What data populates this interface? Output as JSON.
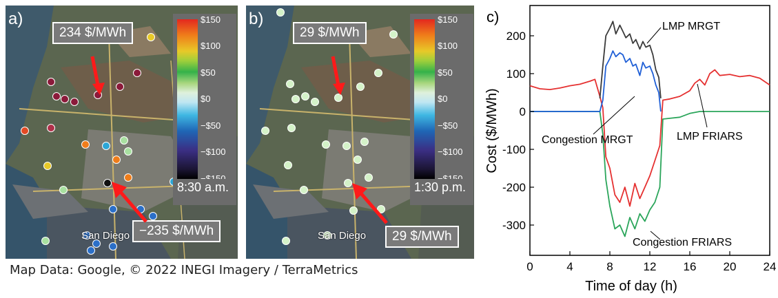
{
  "map_a": {
    "panel_letter": "a)",
    "callout_top": "234 $/MWh",
    "callout_bottom": "−235 $/MWh",
    "time": "8:30 a.m.",
    "city": "San Diego",
    "colorbar_ticks": [
      "$150",
      "$100",
      "$50",
      "$0",
      "−$50",
      "−$100",
      "−$150"
    ]
  },
  "map_b": {
    "panel_letter": "b)",
    "callout_top": "29 $/MWh",
    "callout_bottom": "29 $/MWh",
    "time": "1:30 p.m.",
    "city": "San Diego",
    "colorbar_ticks": [
      "$150",
      "$100",
      "$50",
      "$0",
      "−$50",
      "−$100",
      "−$150"
    ]
  },
  "credit": "Map Data: Google, © 2022 INEGI Imagery / TerraMetrics",
  "colors": {
    "lmp_mrgt": "#3a3a3a",
    "congestion_mrgt": "#1f5fd6",
    "lmp_friars": "#e53030",
    "congestion_friars": "#2aa55a",
    "callout_arrow": "#ff1a1a"
  },
  "chart_data": {
    "type": "line",
    "panel_letter": "c)",
    "xlabel": "Time of day (h)",
    "ylabel": "Cost ($/MWh)",
    "xlim": [
      0,
      24
    ],
    "ylim": [
      -380,
      280
    ],
    "xticks": [
      0,
      4,
      8,
      12,
      16,
      20,
      24
    ],
    "yticks": [
      200,
      100,
      0,
      -100,
      -200,
      -300
    ],
    "annotations": [
      "LMP MRGT",
      "Congestion MRGT",
      "LMP FRIARS",
      "Congestion FRIARS"
    ],
    "series": [
      {
        "name": "LMP MRGT",
        "x": [
          7.0,
          7.3,
          7.6,
          8.0,
          8.3,
          8.6,
          9.0,
          9.3,
          9.6,
          10.0,
          10.3,
          10.6,
          11.0,
          11.3,
          11.6,
          12.0,
          12.3,
          12.6,
          12.9,
          13.1
        ],
        "y": [
          35,
          120,
          200,
          220,
          238,
          205,
          228,
          212,
          195,
          205,
          180,
          190,
          165,
          185,
          170,
          175,
          150,
          110,
          90,
          35
        ]
      },
      {
        "name": "Congestion MRGT",
        "x": [
          0,
          7.0,
          7.3,
          7.6,
          8.0,
          8.3,
          8.6,
          9.0,
          9.3,
          9.6,
          10.0,
          10.3,
          10.6,
          11.0,
          11.3,
          11.6,
          12.0,
          12.3,
          12.6,
          12.9,
          13.1
        ],
        "y": [
          0,
          0,
          30,
          120,
          140,
          160,
          145,
          155,
          150,
          130,
          140,
          120,
          125,
          95,
          130,
          115,
          120,
          100,
          70,
          50,
          0
        ]
      },
      {
        "name": "LMP FRIARS",
        "x": [
          0,
          1,
          2,
          3,
          4,
          5,
          6,
          6.5,
          7.0,
          7.3,
          7.6,
          8.0,
          8.5,
          9.0,
          9.5,
          10.0,
          10.5,
          11.0,
          11.5,
          12.0,
          12.5,
          13.0,
          13.3,
          14,
          15,
          16,
          16.5,
          17.0,
          17.5,
          18.0,
          18.5,
          19,
          20,
          21,
          22,
          23,
          24
        ],
        "y": [
          68,
          60,
          58,
          62,
          68,
          72,
          80,
          85,
          40,
          10,
          -120,
          -150,
          -220,
          -240,
          -200,
          -250,
          -190,
          -230,
          -200,
          -170,
          -130,
          -90,
          30,
          33,
          40,
          55,
          75,
          85,
          70,
          100,
          110,
          95,
          98,
          92,
          95,
          88,
          70
        ]
      },
      {
        "name": "Congestion FRIARS",
        "x": [
          0,
          2,
          4,
          6,
          7.0,
          7.3,
          7.6,
          8.0,
          8.5,
          9.0,
          9.5,
          10.0,
          10.5,
          11.0,
          11.5,
          12.0,
          12.5,
          13.0,
          13.3,
          14,
          15,
          16,
          17,
          18,
          20,
          22,
          24
        ],
        "y": [
          0,
          0,
          0,
          0,
          0,
          -60,
          -180,
          -250,
          -310,
          -300,
          -330,
          -280,
          -310,
          -270,
          -290,
          -260,
          -240,
          -200,
          -20,
          -18,
          -15,
          -5,
          0,
          0,
          0,
          0,
          0
        ]
      }
    ]
  }
}
